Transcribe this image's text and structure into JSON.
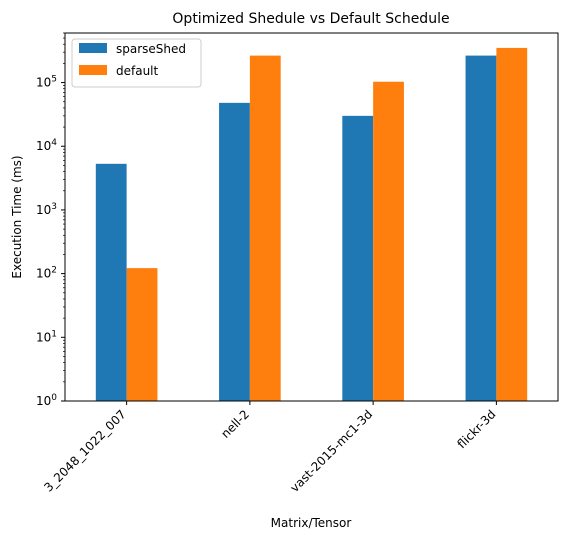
{
  "chart_data": {
    "type": "bar",
    "title": "Optimized Shedule vs Default Schedule",
    "xlabel": "Matrix/Tensor",
    "ylabel": "Execution Time (ms)",
    "yscale": "log",
    "ylim": [
      1,
      600000
    ],
    "yticks": [
      1,
      10,
      100,
      1000,
      10000,
      100000
    ],
    "ytick_bases": [
      "10",
      "10",
      "10",
      "10",
      "10",
      "10"
    ],
    "ytick_exps": [
      "0",
      "1",
      "2",
      "3",
      "4",
      "5"
    ],
    "categories": [
      "3_2048_1022_007",
      "nell-2",
      "vast-2015-mc1-3d",
      "flickr-3d"
    ],
    "series": [
      {
        "name": "sparseShed",
        "color": "#1f77b4",
        "values": [
          5300,
          48000,
          30000,
          265000
        ]
      },
      {
        "name": "default",
        "color": "#ff7f0e",
        "values": [
          122,
          265000,
          103000,
          350000
        ]
      }
    ],
    "legend": "top-left",
    "grid": false
  }
}
